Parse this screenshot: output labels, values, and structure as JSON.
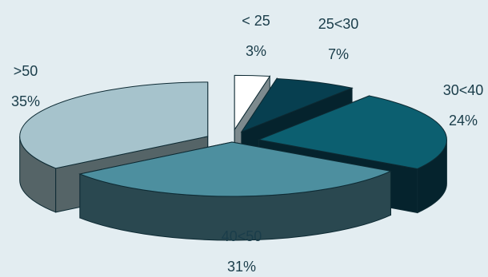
{
  "chart_data": {
    "type": "pie",
    "title": "",
    "legend": "none",
    "exploded": true,
    "categories": [
      "< 25",
      "25<30",
      "30<40",
      "40<50",
      ">50"
    ],
    "values": [
      3,
      7,
      24,
      31,
      35
    ],
    "value_labels": [
      "3%",
      "7%",
      "24%",
      "31%",
      "35%"
    ],
    "colors": [
      "#ffffff",
      "#073f50",
      "#0c5f70",
      "#4d8f9f",
      "#a6c3cc"
    ],
    "side_colors": [
      "#7d8a8e",
      "#05232d",
      "#05232d",
      "#2a4850",
      "#556467"
    ]
  }
}
